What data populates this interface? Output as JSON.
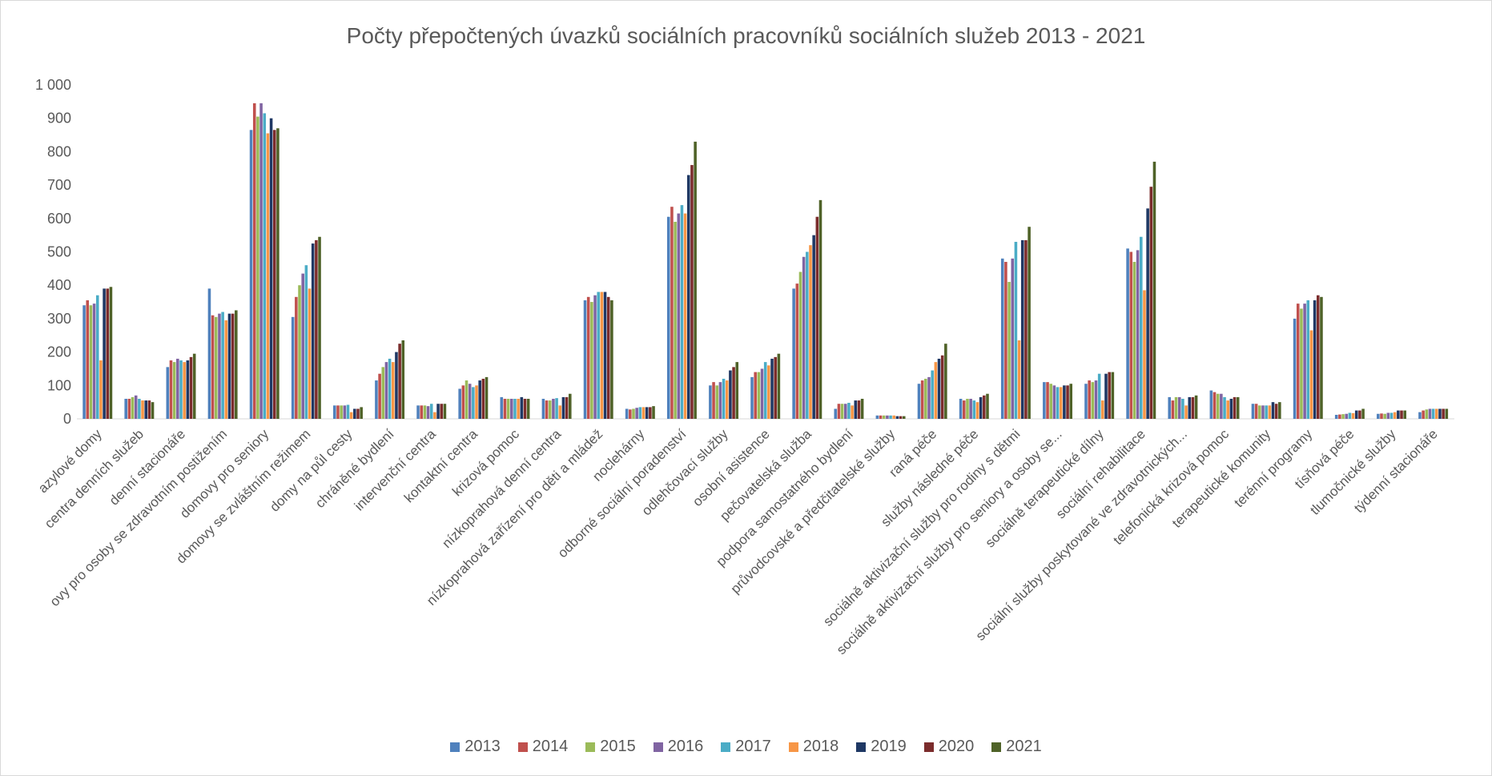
{
  "chart_data": {
    "type": "bar",
    "title": "Počty přepočtených úvazků sociálních pracovníků sociálních služeb 2013 - 2021",
    "xlabel": "",
    "ylabel": "",
    "ylim": [
      0,
      1000
    ],
    "yticks": [
      0,
      100,
      200,
      300,
      400,
      500,
      600,
      700,
      800,
      900,
      1000
    ],
    "ytick_labels": [
      "0",
      "100",
      "200",
      "300",
      "400",
      "500",
      "600",
      "700",
      "800",
      "900",
      "1 000"
    ],
    "grid": false,
    "legend_position": "bottom",
    "categories": [
      "azylové domy",
      "centra denních služeb",
      "denní stacionáře",
      "ovy pro osoby se zdravotním postižením",
      "domovy pro seniory",
      "domovy se zvláštním režimem",
      "domy na půl cesty",
      "chráněné bydlení",
      "intervenční centra",
      "kontaktní centra",
      "krizová pomoc",
      "nízkoprahová denní centra",
      "nízkoprahová zařízení pro děti a mládež",
      "noclehárny",
      "odborné sociální poradenství",
      "odlehčovací služby",
      "osobní asistence",
      "pečovatelská služba",
      "podpora samostatného bydlení",
      "průvodcovské a předčitatelské služby",
      "raná péče",
      "služby následné péče",
      "sociálně aktivizační služby pro rodiny s dětmi",
      "sociálně aktivizační služby pro seniory a osoby se...",
      "sociálně terapeutické dílny",
      "sociální rehabilitace",
      "sociální služby poskytované ve zdravotnických...",
      "telefonická krizová pomoc",
      "terapeutické komunity",
      "terénní programy",
      "tísňová péče",
      "tlumočnické služby",
      "týdenní stacionáře"
    ],
    "series": [
      {
        "name": "2013",
        "color": "#4F81BD",
        "values": [
          340,
          60,
          155,
          390,
          865,
          305,
          40,
          115,
          40,
          90,
          65,
          60,
          355,
          30,
          605,
          100,
          125,
          390,
          30,
          10,
          105,
          60,
          480,
          110,
          105,
          510,
          65,
          85,
          45,
          300,
          12,
          15,
          20
        ]
      },
      {
        "name": "2014",
        "color": "#C0504D",
        "values": [
          355,
          60,
          175,
          310,
          945,
          365,
          40,
          135,
          40,
          100,
          60,
          55,
          365,
          28,
          635,
          110,
          140,
          405,
          45,
          10,
          115,
          55,
          470,
          110,
          115,
          500,
          55,
          80,
          45,
          345,
          13,
          16,
          25
        ]
      },
      {
        "name": "2015",
        "color": "#9BBB59",
        "values": [
          340,
          65,
          170,
          305,
          905,
          400,
          40,
          155,
          40,
          115,
          60,
          55,
          350,
          30,
          590,
          100,
          140,
          440,
          45,
          10,
          120,
          60,
          410,
          105,
          110,
          470,
          65,
          75,
          40,
          330,
          14,
          15,
          28
        ]
      },
      {
        "name": "2016",
        "color": "#8064A2",
        "values": [
          345,
          70,
          180,
          315,
          945,
          435,
          40,
          170,
          38,
          105,
          60,
          60,
          370,
          33,
          615,
          110,
          150,
          485,
          45,
          10,
          125,
          60,
          480,
          100,
          115,
          505,
          65,
          75,
          40,
          345,
          15,
          18,
          30
        ]
      },
      {
        "name": "2017",
        "color": "#4BACC6",
        "values": [
          370,
          60,
          175,
          320,
          915,
          460,
          42,
          180,
          45,
          95,
          60,
          62,
          380,
          35,
          640,
          120,
          170,
          500,
          48,
          10,
          145,
          55,
          530,
          95,
          135,
          545,
          60,
          65,
          40,
          355,
          18,
          18,
          30
        ]
      },
      {
        "name": "2018",
        "color": "#F79646",
        "values": [
          175,
          55,
          170,
          295,
          855,
          390,
          20,
          170,
          20,
          100,
          60,
          40,
          380,
          35,
          615,
          115,
          160,
          520,
          40,
          10,
          170,
          50,
          235,
          95,
          55,
          385,
          40,
          55,
          40,
          265,
          17,
          20,
          30
        ]
      },
      {
        "name": "2019",
        "color": "#1F3864",
        "values": [
          390,
          55,
          175,
          315,
          900,
          525,
          30,
          200,
          45,
          115,
          65,
          65,
          380,
          35,
          730,
          145,
          180,
          550,
          55,
          8,
          180,
          65,
          535,
          100,
          135,
          630,
          65,
          60,
          50,
          355,
          25,
          25,
          30
        ]
      },
      {
        "name": "2020",
        "color": "#7B2C2C",
        "values": [
          390,
          55,
          185,
          315,
          865,
          535,
          30,
          225,
          45,
          120,
          60,
          65,
          365,
          35,
          760,
          155,
          185,
          605,
          55,
          8,
          190,
          70,
          535,
          100,
          140,
          695,
          65,
          65,
          45,
          370,
          25,
          25,
          30
        ]
      },
      {
        "name": "2021",
        "color": "#4F6228",
        "values": [
          395,
          50,
          195,
          325,
          870,
          545,
          35,
          235,
          45,
          125,
          60,
          75,
          355,
          38,
          830,
          170,
          195,
          655,
          60,
          8,
          225,
          75,
          575,
          105,
          140,
          770,
          70,
          65,
          50,
          365,
          30,
          25,
          30
        ]
      }
    ]
  }
}
